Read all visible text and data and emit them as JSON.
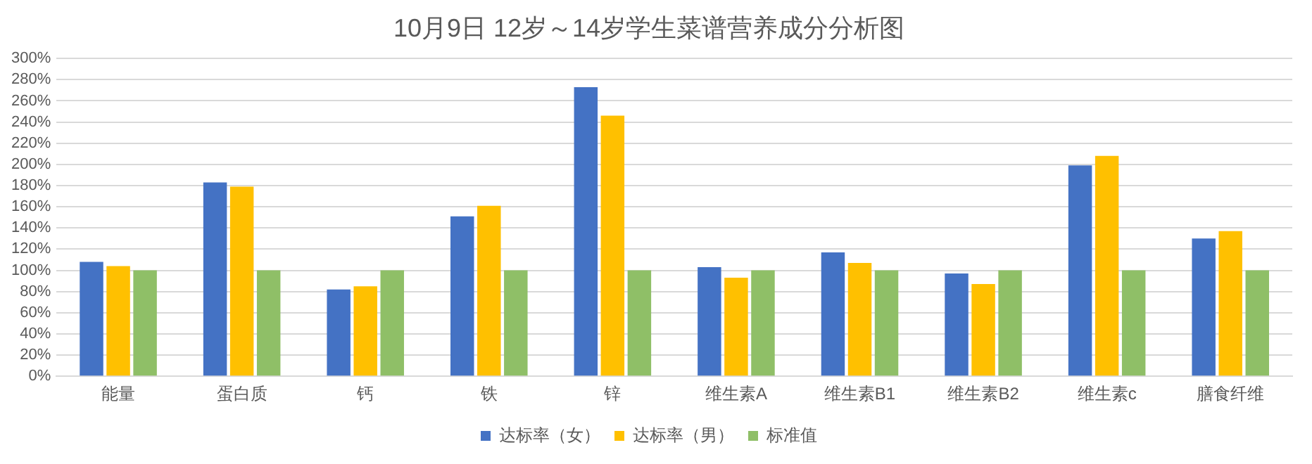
{
  "chart_data": {
    "type": "bar",
    "title": "10月9日 12岁～14岁学生菜谱营养成分分析图",
    "categories": [
      "能量",
      "蛋白质",
      "钙",
      "铁",
      "锌",
      "维生素A",
      "维生素B1",
      "维生素B2",
      "维生素c",
      "膳食纤维"
    ],
    "series": [
      {
        "name": "达标率（女）",
        "color": "#4472c4",
        "values": [
          108,
          183,
          82,
          151,
          273,
          103,
          117,
          97,
          199,
          130
        ]
      },
      {
        "name": "达标率（男）",
        "color": "#ffc000",
        "values": [
          104,
          179,
          85,
          161,
          246,
          93,
          107,
          87,
          208,
          137
        ]
      },
      {
        "name": "标准值",
        "color": "#8fbf67",
        "values": [
          100,
          100,
          100,
          100,
          100,
          100,
          100,
          100,
          100,
          100
        ]
      }
    ],
    "ylim": [
      0,
      300
    ],
    "yticks": [
      {
        "value": 0,
        "label": "0%"
      },
      {
        "value": 20,
        "label": "20%"
      },
      {
        "value": 40,
        "label": "40%"
      },
      {
        "value": 60,
        "label": "60%"
      },
      {
        "value": 80,
        "label": "80%"
      },
      {
        "value": 100,
        "label": "100%"
      },
      {
        "value": 120,
        "label": "120%"
      },
      {
        "value": 140,
        "label": "140%"
      },
      {
        "value": 160,
        "label": "160%"
      },
      {
        "value": 180,
        "label": "180%"
      },
      {
        "value": 200,
        "label": "200%"
      },
      {
        "value": 220,
        "label": "220%"
      },
      {
        "value": 240,
        "label": "240%"
      },
      {
        "value": 260,
        "label": "260%"
      },
      {
        "value": 280,
        "label": "280%"
      },
      {
        "value": 300,
        "label": "300%"
      }
    ],
    "grid": "y",
    "legend": "bottom"
  }
}
